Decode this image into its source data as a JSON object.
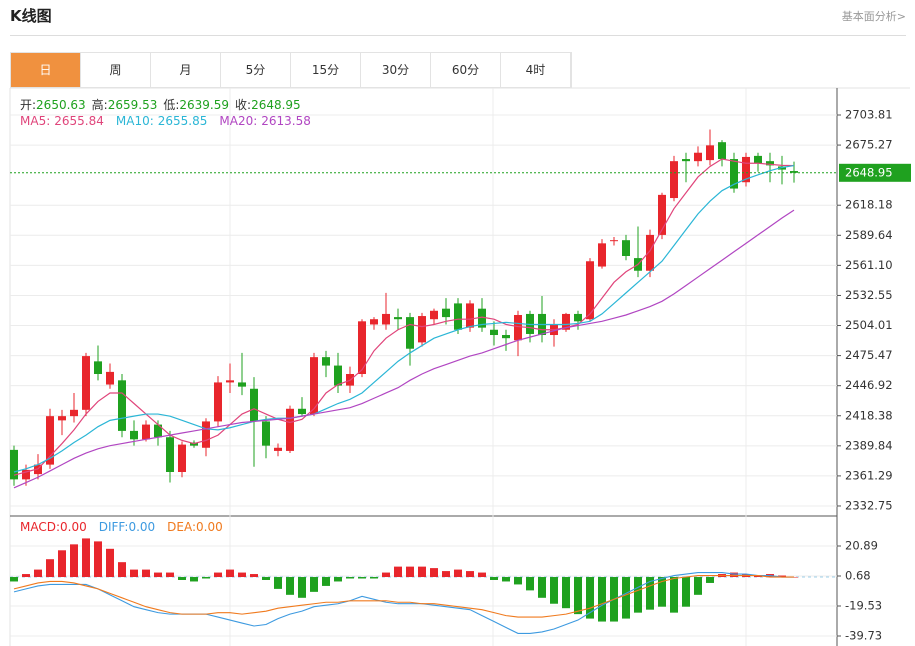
{
  "header": {
    "title": "K线图",
    "link": "基本面分析>"
  },
  "tabs": [
    "日",
    "周",
    "月",
    "5分",
    "15分",
    "30分",
    "60分",
    "4时"
  ],
  "active_tab": "日",
  "chart_data": [
    {
      "type": "candlestick",
      "up_color": "#e8262c",
      "down_color": "#1fa11f",
      "ohlc_labels": {
        "open": "开:",
        "high": "高:",
        "low": "低:",
        "close": "收:"
      },
      "open": [
        2386,
        2358,
        2363,
        2372,
        2414,
        2418,
        2424,
        2470,
        2448,
        2452,
        2404,
        2396,
        2410,
        2398,
        2365,
        2393,
        2388,
        2413,
        2450,
        2450,
        2444,
        2413,
        2385,
        2385,
        2425,
        2420,
        2474,
        2466,
        2447,
        2458,
        2505,
        2505,
        2512,
        2512,
        2488,
        2510,
        2520,
        2525,
        2502,
        2520,
        2500,
        2495,
        2490,
        2515,
        2515,
        2495,
        2500,
        2515,
        2510,
        2560,
        2585,
        2585,
        2568,
        2556,
        2590,
        2625,
        2662,
        2660,
        2661,
        2678,
        2662,
        2640,
        2665,
        2660,
        2655,
        2650.63
      ],
      "high": [
        2390,
        2372,
        2382,
        2425,
        2424,
        2440,
        2478,
        2485,
        2468,
        2458,
        2414,
        2414,
        2414,
        2404,
        2394,
        2395,
        2416,
        2456,
        2468,
        2478,
        2455,
        2418,
        2392,
        2428,
        2436,
        2478,
        2480,
        2478,
        2465,
        2510,
        2512,
        2535,
        2520,
        2516,
        2516,
        2520,
        2530,
        2530,
        2528,
        2530,
        2508,
        2500,
        2518,
        2518,
        2532,
        2510,
        2516,
        2518,
        2568,
        2586,
        2588,
        2590,
        2598,
        2595,
        2630,
        2665,
        2668,
        2674,
        2690,
        2680,
        2668,
        2668,
        2668,
        2668,
        2665,
        2659.53
      ],
      "low": [
        2352,
        2352,
        2358,
        2368,
        2400,
        2412,
        2418,
        2452,
        2444,
        2398,
        2390,
        2394,
        2390,
        2355,
        2360,
        2388,
        2380,
        2408,
        2440,
        2438,
        2370,
        2378,
        2380,
        2383,
        2418,
        2418,
        2455,
        2440,
        2440,
        2455,
        2500,
        2500,
        2500,
        2466,
        2484,
        2505,
        2505,
        2496,
        2498,
        2498,
        2485,
        2480,
        2475,
        2488,
        2488,
        2484,
        2498,
        2500,
        2508,
        2558,
        2580,
        2566,
        2550,
        2550,
        2586,
        2622,
        2640,
        2655,
        2656,
        2655,
        2630,
        2636,
        2650,
        2640,
        2638,
        2639.59
      ],
      "close": [
        2358,
        2367,
        2372,
        2418,
        2418,
        2424,
        2475,
        2458,
        2460,
        2404,
        2396,
        2410,
        2398,
        2365,
        2391,
        2390,
        2413,
        2450,
        2452,
        2446,
        2413,
        2390,
        2388,
        2425,
        2420,
        2474,
        2466,
        2447,
        2458,
        2508,
        2510,
        2515,
        2510,
        2482,
        2513,
        2518,
        2512,
        2500,
        2525,
        2502,
        2495,
        2492,
        2514,
        2496,
        2495,
        2505,
        2515,
        2508,
        2565,
        2582,
        2585,
        2570,
        2556,
        2590,
        2628,
        2660,
        2660,
        2668,
        2675,
        2662,
        2634,
        2664,
        2658,
        2656,
        2652,
        2648.95
      ],
      "series": [
        {
          "name": "MA5:",
          "color": "#e0457b",
          "values": [
            2362,
            2365,
            2368,
            2380,
            2392,
            2405,
            2420,
            2432,
            2440,
            2440,
            2430,
            2420,
            2410,
            2400,
            2395,
            2392,
            2395,
            2400,
            2410,
            2420,
            2425,
            2420,
            2415,
            2412,
            2415,
            2425,
            2440,
            2448,
            2452,
            2462,
            2480,
            2492,
            2500,
            2505,
            2503,
            2505,
            2508,
            2510,
            2510,
            2512,
            2510,
            2505,
            2503,
            2502,
            2500,
            2500,
            2502,
            2505,
            2515,
            2530,
            2545,
            2555,
            2562,
            2575,
            2595,
            2615,
            2630,
            2645,
            2655,
            2662,
            2660,
            2658,
            2658,
            2657,
            2656,
            2655.84
          ]
        },
        {
          "name": "MA10:",
          "color": "#2bb6d6",
          "values": [
            2365,
            2368,
            2372,
            2378,
            2385,
            2393,
            2400,
            2408,
            2414,
            2416,
            2418,
            2420,
            2420,
            2418,
            2414,
            2410,
            2406,
            2405,
            2407,
            2410,
            2413,
            2415,
            2416,
            2416,
            2418,
            2420,
            2425,
            2430,
            2434,
            2440,
            2450,
            2460,
            2470,
            2478,
            2485,
            2492,
            2496,
            2500,
            2503,
            2505,
            2506,
            2507,
            2506,
            2505,
            2505,
            2505,
            2505,
            2506,
            2508,
            2515,
            2525,
            2535,
            2545,
            2555,
            2565,
            2580,
            2595,
            2610,
            2622,
            2632,
            2638,
            2643,
            2647,
            2651,
            2654,
            2655.85
          ]
        },
        {
          "name": "MA20:",
          "color": "#b146c2",
          "values": [
            2350,
            2355,
            2360,
            2366,
            2372,
            2378,
            2383,
            2387,
            2390,
            2392,
            2394,
            2396,
            2398,
            2400,
            2402,
            2404,
            2406,
            2408,
            2410,
            2412,
            2413,
            2414,
            2415,
            2416,
            2418,
            2420,
            2422,
            2424,
            2426,
            2430,
            2435,
            2440,
            2445,
            2452,
            2458,
            2463,
            2467,
            2471,
            2475,
            2478,
            2482,
            2486,
            2490,
            2493,
            2496,
            2499,
            2502,
            2504,
            2506,
            2508,
            2511,
            2514,
            2518,
            2522,
            2527,
            2534,
            2542,
            2550,
            2558,
            2566,
            2574,
            2582,
            2590,
            2598,
            2606,
            2613.58
          ]
        }
      ],
      "ylim": [
        2323.24,
        2729.43
      ],
      "yticks": [
        2703.81,
        2675.27,
        2618.18,
        2589.64,
        {
          "value": 2561.1,
          "label": "2561.10"
        },
        2532.55,
        2504.01,
        2475.47,
        2446.92,
        2418.38,
        2389.84,
        2361.29,
        2332.75
      ],
      "grid": true
    },
    {
      "type": "macd",
      "up_color": "#e8262c",
      "down_color": "#1fa11f",
      "series": [
        {
          "name": "MACD:",
          "kind": "bar",
          "color": "#e8262c",
          "last_label": "0.00",
          "values": [
            -3,
            2,
            5,
            12,
            18,
            22,
            26,
            24,
            19,
            10,
            5,
            5,
            3,
            3,
            -2,
            -3,
            -1,
            3,
            5,
            3,
            2,
            -2,
            -8,
            -12,
            -14,
            -10,
            -6,
            -3,
            -1,
            -1,
            -1,
            3,
            7,
            7,
            7,
            6,
            4,
            5,
            4,
            3,
            -2,
            -3,
            -5,
            -9,
            -14,
            -18,
            -21,
            -25,
            -28,
            -30,
            -30,
            -28,
            -24,
            -22,
            -20,
            -24,
            -20,
            -12,
            -4,
            2,
            3,
            2,
            1,
            2,
            1,
            0
          ]
        },
        {
          "name": "DIFF:",
          "kind": "line",
          "color": "#3d9ae0",
          "last_label": "0.00",
          "values": [
            -10,
            -8,
            -6,
            -5,
            -5,
            -5,
            -5,
            -8,
            -12,
            -16,
            -20,
            -22,
            -24,
            -25,
            -25,
            -25,
            -25,
            -27,
            -29,
            -31,
            -33,
            -32,
            -28,
            -25,
            -23,
            -20,
            -19,
            -18,
            -16,
            -13,
            -15,
            -17,
            -18,
            -18,
            -18,
            -19,
            -20,
            -21,
            -22,
            -26,
            -30,
            -34,
            -38,
            -38,
            -37,
            -35,
            -32,
            -29,
            -24,
            -19,
            -15,
            -11,
            -7,
            -3,
            -1,
            1,
            2,
            3,
            3,
            3,
            2,
            2,
            1,
            1,
            0,
            0
          ]
        },
        {
          "name": "DEA:",
          "kind": "line",
          "color": "#f07a1e",
          "last_label": "0.00",
          "values": [
            -8,
            -6,
            -4,
            -3,
            -3,
            -4,
            -6,
            -8,
            -11,
            -14,
            -17,
            -20,
            -22,
            -24,
            -25,
            -25,
            -25,
            -24,
            -24,
            -25,
            -24,
            -23,
            -21,
            -20,
            -19,
            -18,
            -17,
            -17,
            -16,
            -16,
            -16,
            -16,
            -17,
            -17,
            -18,
            -18,
            -19,
            -20,
            -21,
            -22,
            -24,
            -26,
            -27,
            -27,
            -27,
            -26,
            -25,
            -23,
            -21,
            -18,
            -15,
            -12,
            -9,
            -6,
            -3,
            -1,
            0,
            1,
            1,
            1,
            1,
            1,
            1,
            0,
            0,
            0
          ]
        }
      ],
      "ylim": [
        -46.47,
        41.1
      ],
      "yticks": [
        20.89,
        0.68,
        -19.53,
        -39.73
      ],
      "grid": true
    }
  ]
}
